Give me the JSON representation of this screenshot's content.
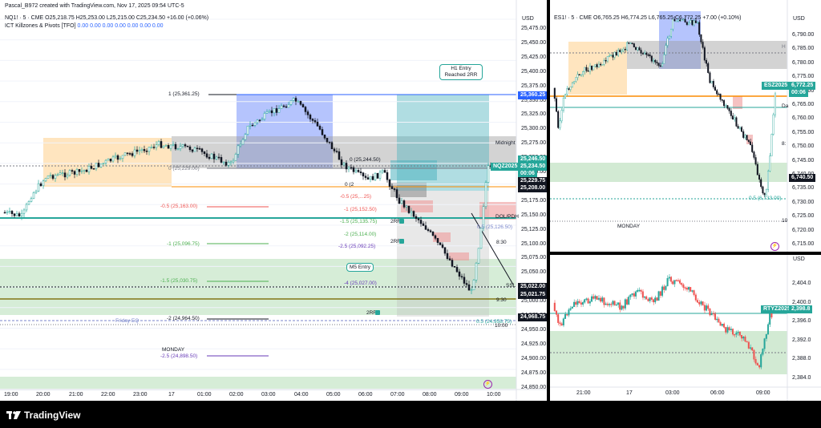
{
  "watermark": "Pascal_B972 created with TradingView.com, Nov 17, 2025 09:54 UTC-5",
  "brand": "TradingView",
  "left_chart": {
    "symbol_line": "NQ1! · 5 · CME  O25,218.75  H25,253.00  L25,215.00  C25,234.50  +16.00 (+0.06%)",
    "indicator_name": "ICT Killzones & Pivots [TFO]",
    "indicator_values": "0.00  0.00  0.00  0.00  0.00  0.00  0.00",
    "currency": "USD",
    "price_ticks": [
      "25,475.00",
      "25,450.00",
      "25,425.00",
      "25,400.00",
      "25,375.00",
      "25,350.00",
      "25,325.00",
      "25,300.00",
      "25,275.00",
      "25,250.00",
      "25,225.00",
      "25,200.00",
      "25,175.00",
      "25,150.00",
      "25,125.00",
      "25,100.00",
      "25,075.00",
      "25,050.00",
      "25,025.00",
      "25,000.00",
      "24,975.00",
      "24,950.00",
      "24,925.00",
      "24,900.00",
      "24,875.00",
      "24,850.00"
    ],
    "time_ticks": [
      "19:00",
      "20:00",
      "21:00",
      "22:00",
      "23:00",
      "17",
      "01:00",
      "02:00",
      "03:00",
      "04:00",
      "05:00",
      "06:00",
      "07:00",
      "08:00",
      "09:00",
      "10:00"
    ],
    "price_tags": [
      {
        "text": "25,360.25",
        "color": "#2962ff"
      },
      {
        "text": "25,246.50",
        "color": "#26a69a"
      },
      {
        "text": "25,234.50",
        "color": "#26a69a"
      },
      {
        "text": "00:06",
        "color": "#26a69a"
      },
      {
        "text": "25,229.75",
        "color": "#131722"
      },
      {
        "text": "25,208.00",
        "color": "#131722"
      },
      {
        "text": "25,022.00",
        "color": "#131722"
      },
      {
        "text": "25,021.75",
        "color": "#131722"
      },
      {
        "text": "24,968.75",
        "color": "#131722"
      }
    ],
    "symbol_tag": "NQZ2025",
    "fib_labels": {
      "f1": "1 (25,361.25)",
      "f0": "0 (25,229.00)",
      "fm05": "-0.5 (25,163.00)",
      "fm1": "-1 (25,096.75)",
      "fm15": "-1.5 (25,030.75)",
      "fm2": "-2 (24,964.50)",
      "fm25": "-2.5 (24,898.50)",
      "g0": "0 (25,244.50)",
      "g0b": "0 (2",
      "gm05": "-0.5 (25,...25)",
      "gm1": "-1 (25,152.50)",
      "gm15": "-1.5 (25,135.75)",
      "gm2": "-2 (25,114.00)",
      "gm25": "-2.5 (25,092.25)",
      "gm4": "-4 (25,027.00)",
      "h05": "0.5 (25,126.50)",
      "h05b": "0.5 (24,958.75)"
    },
    "session_labels": {
      "midnight": "Midnight",
      "t830": "8:30",
      "t930": "9:30",
      "t1000": "10:00",
      "friday_eq": "Friday EQ",
      "monday": "MONDAY",
      "dol": "DOL/PDH",
      "ssl": "SSL",
      "rr2a": "2RR",
      "rr2b": "2RR",
      "rr2c": "2RR"
    },
    "callouts": {
      "h1": "H1 Entry Reached 2RR",
      "m5": "M5 Entry"
    }
  },
  "right_top_chart": {
    "symbol_line": "ES1! · 5 · CME  O6,765.25  H6,774.25  L6,765.25  C6,772.25  +7.00 (+0.10%)",
    "currency": "USD",
    "price_ticks": [
      "6,790.00",
      "6,785.00",
      "6,780.00",
      "6,775.00",
      "6,770.00",
      "6,765.00",
      "6,760.00",
      "6,755.00",
      "6,750.00",
      "6,745.00",
      "6,740.00",
      "6,735.00",
      "6,730.00",
      "6,725.00",
      "6,720.00",
      "6,715.00"
    ],
    "symbol_tag": "ESZ2025",
    "price_tag": "6,772.25",
    "time_tag": "00:06",
    "dark_tag": "6,740.50",
    "fib_label": "0.5 (6,733.00)",
    "monday": "MONDAY",
    "side_labels": {
      "h": "H",
      "d": "Da",
      "e": "8:",
      "t": "10"
    }
  },
  "right_bottom_chart": {
    "currency": "USD",
    "price_ticks": [
      "2,404.0",
      "2,400.0",
      "2,396.0",
      "2,392.0",
      "2,388.0",
      "2,384.0"
    ],
    "symbol_tag": "RTYZ2025",
    "price_tag": "2,398.8",
    "time_ticks": [
      "21:00",
      "17",
      "03:00",
      "06:00",
      "09:00"
    ]
  },
  "colors": {
    "up": "#26a69a",
    "down": "#ef5350",
    "candle": "#131722",
    "asia": "#ffcc80",
    "london": "#5c7cfa",
    "ny": "#4fb3bf",
    "fvg_green": "#a5d6a7"
  }
}
